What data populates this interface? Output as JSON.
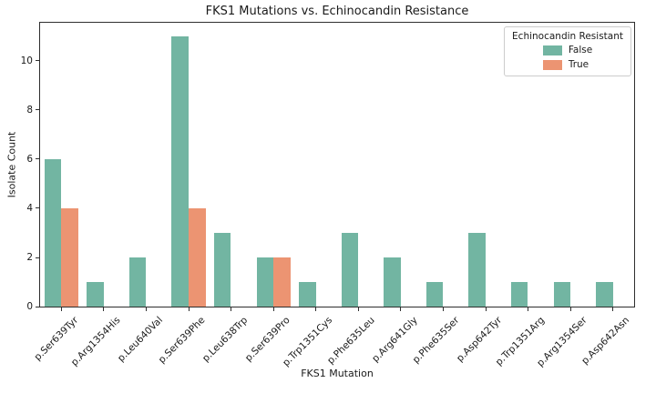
{
  "chart_data": {
    "type": "bar",
    "title": "FKS1 Mutations vs. Echinocandin Resistance",
    "xlabel": "FKS1 Mutation",
    "ylabel": "Isolate Count",
    "legend_title": "Echinocandin Resistant",
    "legend_position": "upper right",
    "grid": false,
    "ylim": [
      0,
      11.55
    ],
    "yticks": [
      0,
      2,
      4,
      6,
      8,
      10
    ],
    "xtick_rotation": 45,
    "categories": [
      "p.Ser639Tyr",
      "p.Arg1354His",
      "p.Leu640Val",
      "p.Ser639Phe",
      "p.Leu638Trp",
      "p.Ser639Pro",
      "p.Trp1351Cys",
      "p.Phe635Leu",
      "p.Arg641Gly",
      "p.Phe635Ser",
      "p.Asp642Tyr",
      "p.Trp1351Arg",
      "p.Arg1354Ser",
      "p.Asp642Asn"
    ],
    "series": [
      {
        "name": "False",
        "color": "#72b5a2",
        "values": [
          6,
          1,
          2,
          11,
          3,
          2,
          1,
          3,
          2,
          1,
          3,
          1,
          1,
          1
        ]
      },
      {
        "name": "True",
        "color": "#ec9472",
        "values": [
          4,
          0,
          0,
          4,
          0,
          2,
          0,
          0,
          0,
          0,
          0,
          0,
          0,
          0
        ]
      }
    ],
    "colors": {
      "false_bar": "#72b5a2",
      "true_bar": "#ec9472",
      "spine": "#2e2e2e",
      "text": "#1a1a1a"
    }
  }
}
